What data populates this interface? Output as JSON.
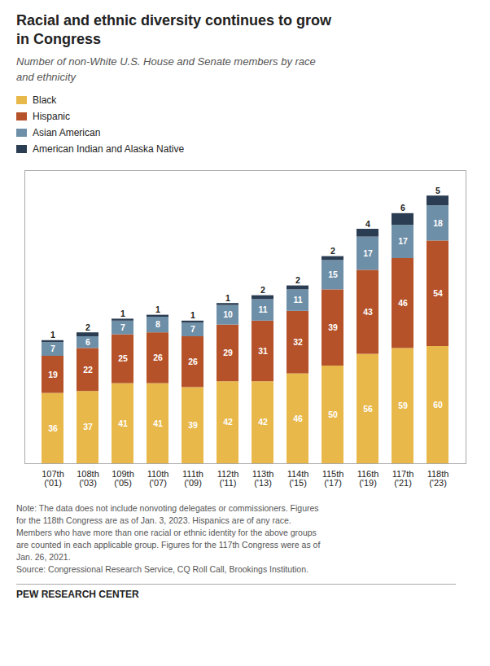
{
  "chart_data": {
    "type": "bar",
    "stacked": true,
    "title": "Racial and ethnic diversity continues to grow\nin Congress",
    "subtitle": "Number of non-White U.S. House and Senate members by race\nand ethnicity",
    "categories": [
      "107th\n('01)",
      "108th\n('03)",
      "109th\n('05)",
      "110th\n('07)",
      "111th\n('09)",
      "112th\n('11)",
      "113th\n('13)",
      "114th\n('15)",
      "115th\n('17)",
      "116th\n('19)",
      "117th\n('21)",
      "118th\n('23)"
    ],
    "series": [
      {
        "name": "Black",
        "color": "#E8B84B",
        "values": [
          36,
          37,
          41,
          41,
          39,
          42,
          42,
          46,
          50,
          56,
          59,
          60
        ]
      },
      {
        "name": "Hispanic",
        "color": "#B5522A",
        "values": [
          19,
          22,
          25,
          26,
          26,
          29,
          31,
          32,
          39,
          43,
          46,
          54
        ]
      },
      {
        "name": "Asian American",
        "color": "#6E8FA8",
        "values": [
          7,
          6,
          7,
          8,
          7,
          10,
          11,
          11,
          15,
          17,
          17,
          18
        ]
      },
      {
        "name": "American Indian and Alaska Native",
        "color": "#2B3D52",
        "values": [
          1,
          2,
          1,
          1,
          1,
          1,
          2,
          2,
          2,
          4,
          6,
          5
        ]
      }
    ],
    "ylim": [
      0,
      150
    ],
    "tick_labels": "x",
    "grid": false,
    "legend": "top-left",
    "data_labels": true,
    "notes": [
      "Note: The data does not include nonvoting delegates or commissioners. Figures",
      "for the 118th Congress are as of Jan. 3, 2023. Hispanics are of any race.",
      "Members who have more than one racial or ethnic identity for the above groups",
      "are counted in each applicable group. Figures for the 117th Congress were as of",
      "Jan. 26, 2021."
    ],
    "source": "Source: Congressional Research Service, CQ Roll Call, Brookings Institution.",
    "footer": "PEW RESEARCH CENTER"
  }
}
